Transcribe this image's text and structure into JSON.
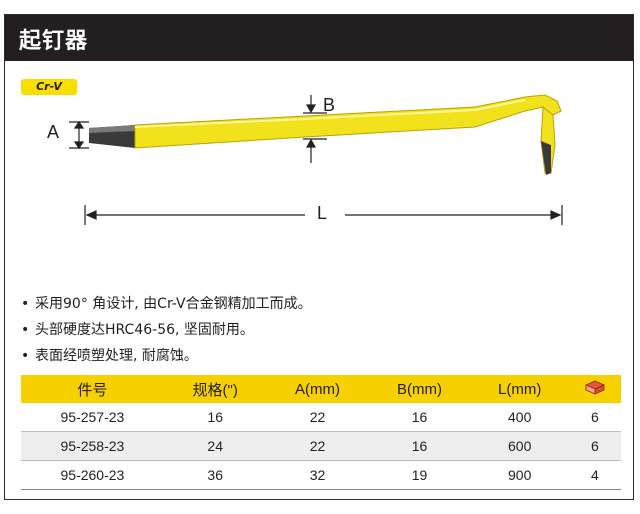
{
  "header": {
    "title": "起钉器"
  },
  "badge": {
    "label": "Cr-V"
  },
  "diagram": {
    "label_a": "A",
    "label_b": "B",
    "label_l": "L"
  },
  "colors": {
    "title_bg": "#231f20",
    "accent_yellow": "#f7d000",
    "bar_yellow": "#f2e21c"
  },
  "features": [
    "采用90° 角设计, 由Cr-V合金钢精加工而成。",
    "头部硬度达HRC46-56, 坚固耐用。",
    "表面经喷塑处理, 耐腐蚀。"
  ],
  "table": {
    "headers": [
      "件号",
      "规格(\")",
      "A(mm)",
      "B(mm)",
      "L(mm)"
    ],
    "box_icon": "box-quantity-icon",
    "rows": [
      [
        "95-257-23",
        "16",
        "22",
        "16",
        "400",
        "6"
      ],
      [
        "95-258-23",
        "24",
        "22",
        "16",
        "600",
        "6"
      ],
      [
        "95-260-23",
        "36",
        "32",
        "19",
        "900",
        "4"
      ]
    ]
  }
}
